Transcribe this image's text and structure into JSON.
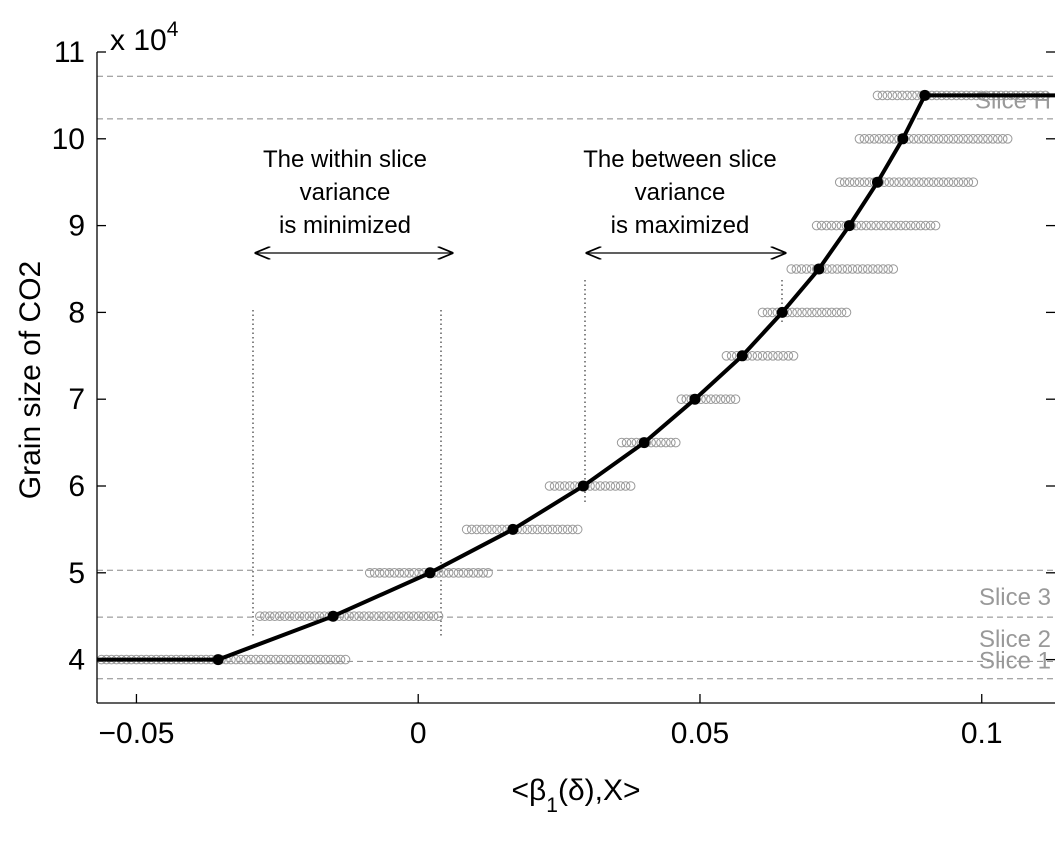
{
  "chart_data": {
    "type": "line",
    "ylabel": "Grain size of CO2",
    "xlabel_parts": [
      "<β",
      "1",
      "(δ),X>"
    ],
    "y_multiplier": {
      "base": "x 10",
      "exponent": "4"
    },
    "xlim": [
      -0.057,
      0.113
    ],
    "ylim": [
      3.5,
      11
    ],
    "xticks": [
      {
        "value": -0.05,
        "label": "−0.05"
      },
      0,
      0.05,
      0.1
    ],
    "yticks": [
      4,
      5,
      6,
      7,
      8,
      9,
      10,
      11
    ],
    "line": {
      "color": "#000000",
      "x": [
        -0.057,
        -0.0355,
        -0.0151,
        0.0021,
        0.0168,
        0.0293,
        0.0401,
        0.0491,
        0.0575,
        0.0646,
        0.0711,
        0.0765,
        0.0815,
        0.086,
        0.0899,
        0.113
      ],
      "values": [
        4,
        4,
        4.5,
        5,
        5.5,
        6,
        6.5,
        7,
        7.5,
        8,
        8.5,
        9,
        9.5,
        10,
        10.5,
        10.5
      ]
    },
    "markers": {
      "color": "#000000",
      "x": [
        -0.0355,
        -0.0151,
        0.0021,
        0.0168,
        0.0293,
        0.0401,
        0.0491,
        0.0575,
        0.0646,
        0.0711,
        0.0765,
        0.0815,
        0.086,
        0.0899
      ],
      "values": [
        4,
        4.5,
        5,
        5.5,
        6,
        6.5,
        7,
        7.5,
        8,
        8.5,
        9,
        9.5,
        10,
        10.5
      ]
    },
    "bands": {
      "color": "#999999",
      "values": [
        4,
        4.5,
        5,
        5.5,
        6,
        6.5,
        7,
        7.5,
        8,
        8.5,
        9,
        9.5,
        10,
        10.5
      ],
      "x_from": [
        -0.057,
        -0.0289,
        -0.0094,
        0.0078,
        0.0225,
        0.0353,
        0.0459,
        0.0539,
        0.0603,
        0.0654,
        0.0699,
        0.074,
        0.0775,
        0.0807
      ],
      "x_to": [
        -0.0121,
        0.0044,
        0.0132,
        0.0291,
        0.0385,
        0.0465,
        0.0571,
        0.0674,
        0.0768,
        0.0851,
        0.0926,
        0.0993,
        0.1054,
        0.1121
      ]
    },
    "hlines": [
      10.72,
      10.23,
      5.03,
      4.49,
      3.98,
      3.78
    ],
    "slice_labels": [
      {
        "text": "Slice H",
        "y": 10.45
      },
      {
        "text": "Slice 3",
        "y": 4.73
      },
      {
        "text": "Slice 2",
        "y": 4.25
      },
      {
        "text": "Slice 1",
        "y": 4.0
      }
    ],
    "annotations": [
      {
        "lines": [
          "The within slice",
          "variance",
          "is minimized"
        ]
      },
      {
        "lines": [
          "The between slice",
          "variance",
          "is maximized"
        ]
      }
    ]
  }
}
